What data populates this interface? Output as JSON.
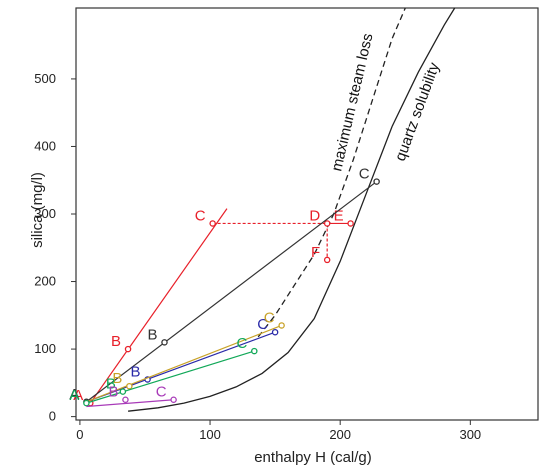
{
  "chart_data": {
    "type": "line",
    "xlabel": "enthalpy H (cal/g)",
    "ylabel": "silica (mg/l)",
    "xlim": [
      -3,
      352
    ],
    "ylim": [
      -5,
      605
    ],
    "x_ticks": [
      0,
      100,
      200,
      300
    ],
    "y_ticks": [
      0,
      100,
      200,
      300,
      400,
      500
    ],
    "curves": [
      {
        "name": "quartz solubility",
        "color": "#222222",
        "dash": false,
        "x": [
          37,
          60,
          80,
          100,
          120,
          140,
          160,
          180,
          200,
          220,
          240,
          260,
          280,
          288
        ],
        "y": [
          8,
          13,
          20,
          30,
          44,
          64,
          95,
          145,
          230,
          330,
          430,
          510,
          580,
          605
        ]
      },
      {
        "name": "maximum steam loss",
        "color": "#222222",
        "dash": true,
        "x": [
          137,
          150,
          165,
          180,
          195,
          210,
          225,
          240,
          250
        ],
        "y": [
          118,
          150,
          195,
          240,
          300,
          380,
          470,
          560,
          605
        ]
      }
    ],
    "series": [
      {
        "color": "#e8202a",
        "lines": [
          {
            "x": [
              8,
              113
            ],
            "y": [
              20,
              308
            ]
          },
          {
            "x": [
              102,
              190
            ],
            "y": [
              286,
              286
            ],
            "dash": true
          },
          {
            "x": [
              190,
              208
            ],
            "y": [
              286,
              286
            ]
          },
          {
            "x": [
              190,
              190
            ],
            "y": [
              286,
              232
            ],
            "dash": true
          }
        ],
        "points": [
          {
            "label": "A",
            "x": 8,
            "y": 20
          },
          {
            "label": "B",
            "x": 37,
            "y": 100
          },
          {
            "label": "C",
            "x": 102,
            "y": 286
          },
          {
            "label": "D",
            "x": 190,
            "y": 286
          },
          {
            "label": "E",
            "x": 208,
            "y": 286
          },
          {
            "label": "F",
            "x": 190,
            "y": 232
          }
        ]
      },
      {
        "color": "#333333",
        "lines": [
          {
            "x": [
              5,
              228
            ],
            "y": [
              22,
              348
            ]
          }
        ],
        "points": [
          {
            "label": "A",
            "x": 5,
            "y": 22
          },
          {
            "label": "B",
            "x": 65,
            "y": 110
          },
          {
            "label": "C",
            "x": 228,
            "y": 348
          }
        ]
      },
      {
        "color": "#2a2aa8",
        "lines": [
          {
            "x": [
              5,
              150
            ],
            "y": [
              22,
              125
            ]
          }
        ],
        "points": [
          {
            "label": "B",
            "x": 52,
            "y": 55
          },
          {
            "label": "C",
            "x": 150,
            "y": 125
          }
        ]
      },
      {
        "color": "#c8a228",
        "lines": [
          {
            "x": [
              5,
              155
            ],
            "y": [
              22,
              135
            ]
          }
        ],
        "points": [
          {
            "label": "B",
            "x": 38,
            "y": 45
          },
          {
            "label": "C",
            "x": 155,
            "y": 135
          }
        ]
      },
      {
        "color": "#11a858",
        "lines": [
          {
            "x": [
              5,
              134
            ],
            "y": [
              20,
              97
            ]
          }
        ],
        "points": [
          {
            "label": "A",
            "x": 5,
            "y": 20
          },
          {
            "label": "B",
            "x": 33,
            "y": 37
          },
          {
            "label": "C",
            "x": 134,
            "y": 97
          }
        ]
      },
      {
        "color": "#a83ab8",
        "lines": [
          {
            "x": [
              5,
              72
            ],
            "y": [
              15,
              25
            ]
          }
        ],
        "points": [
          {
            "label": "B",
            "x": 35,
            "y": 25
          },
          {
            "label": "C",
            "x": 72,
            "y": 25
          }
        ]
      }
    ]
  }
}
